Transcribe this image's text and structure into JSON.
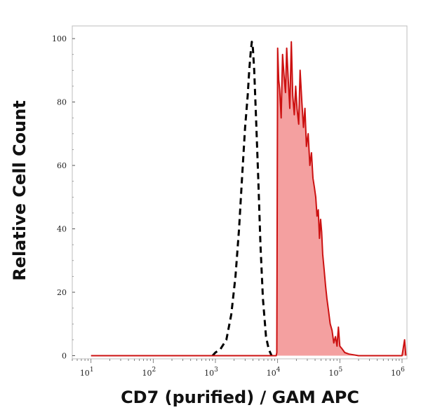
{
  "chart_data": {
    "type": "area",
    "title": "",
    "xlabel": "CD7 (purified) / GAM APC",
    "ylabel": "Relative Cell Count",
    "x_scale": "log",
    "xlim": [
      5,
      1200000
    ],
    "ylim": [
      -1,
      104
    ],
    "grid": false,
    "y_ticks": [
      0,
      20,
      40,
      60,
      80,
      100
    ],
    "x_tick_labels": [
      {
        "base": "10",
        "exp": "1",
        "value": 10
      },
      {
        "base": "10",
        "exp": "2",
        "value": 100
      },
      {
        "base": "10",
        "exp": "3",
        "value": 1000
      },
      {
        "base": "10",
        "exp": "4",
        "value": 10000
      },
      {
        "base": "10",
        "exp": "5",
        "value": 100000
      },
      {
        "base": "10",
        "exp": "6",
        "value": 1000000
      }
    ],
    "series": [
      {
        "style": "dashed",
        "color": "#000000",
        "points": [
          [
            900,
            0
          ],
          [
            1000,
            1
          ],
          [
            1200,
            2
          ],
          [
            1500,
            5
          ],
          [
            1800,
            13
          ],
          [
            2100,
            25
          ],
          [
            2400,
            40
          ],
          [
            2700,
            57
          ],
          [
            3000,
            72
          ],
          [
            3300,
            82
          ],
          [
            3500,
            90
          ],
          [
            3700,
            96
          ],
          [
            3850,
            99
          ],
          [
            4000,
            97
          ],
          [
            4200,
            90
          ],
          [
            4500,
            75
          ],
          [
            4900,
            55
          ],
          [
            5300,
            35
          ],
          [
            5800,
            18
          ],
          [
            6500,
            6
          ],
          [
            7200,
            2
          ],
          [
            8000,
            0
          ]
        ]
      },
      {
        "style": "filled",
        "color": "#cc1111",
        "fill": "#f4a0a0",
        "points": [
          [
            10,
            0
          ],
          [
            9500,
            0
          ],
          [
            9700,
            1
          ],
          [
            10000,
            97
          ],
          [
            10400,
            87
          ],
          [
            10800,
            84
          ],
          [
            11400,
            75
          ],
          [
            12000,
            95
          ],
          [
            12700,
            88
          ],
          [
            13400,
            83
          ],
          [
            14000,
            97
          ],
          [
            14800,
            87
          ],
          [
            15700,
            78
          ],
          [
            16600,
            99
          ],
          [
            17500,
            82
          ],
          [
            18500,
            76
          ],
          [
            19500,
            85
          ],
          [
            20500,
            78
          ],
          [
            21800,
            73
          ],
          [
            23000,
            90
          ],
          [
            24500,
            80
          ],
          [
            26000,
            72
          ],
          [
            27500,
            78
          ],
          [
            29000,
            66
          ],
          [
            31000,
            70
          ],
          [
            33000,
            60
          ],
          [
            35000,
            64
          ],
          [
            37000,
            56
          ],
          [
            39000,
            53
          ],
          [
            41000,
            50
          ],
          [
            43000,
            44
          ],
          [
            45000,
            46
          ],
          [
            47000,
            37
          ],
          [
            49000,
            43
          ],
          [
            51000,
            39
          ],
          [
            53000,
            32
          ],
          [
            56000,
            27
          ],
          [
            59000,
            22
          ],
          [
            62000,
            18
          ],
          [
            66000,
            14
          ],
          [
            70000,
            10
          ],
          [
            75000,
            8
          ],
          [
            80000,
            4
          ],
          [
            85000,
            6
          ],
          [
            90000,
            3
          ],
          [
            95000,
            9
          ],
          [
            100000,
            3
          ],
          [
            110000,
            2
          ],
          [
            120000,
            1
          ],
          [
            140000,
            0.5
          ],
          [
            200000,
            0
          ],
          [
            1000000,
            0
          ],
          [
            1100000,
            5
          ],
          [
            1150000,
            0
          ]
        ]
      }
    ]
  }
}
